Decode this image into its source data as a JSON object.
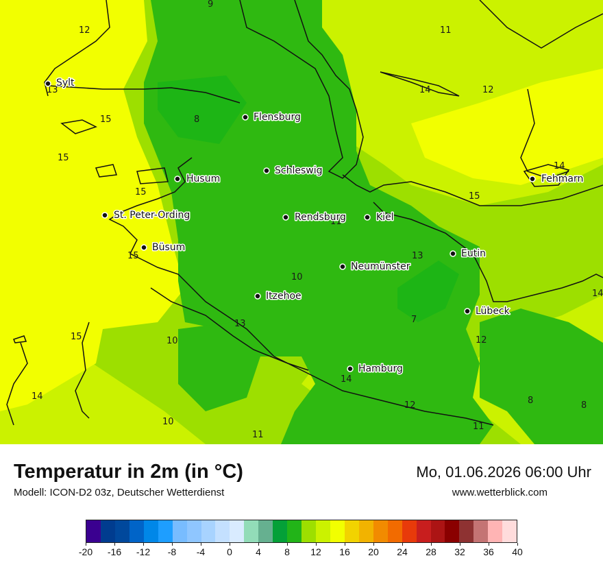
{
  "header": {
    "title": "Temperatur in 2m (in °C)",
    "subtitle": "Modell: ICON-D2 03z, Deutscher Wetterdienst",
    "datetime": "Mo, 01.06.2026 06:00 Uhr",
    "website": "www.wetterblick.com"
  },
  "colors": {
    "t8": "#1db515",
    "t10": "#2fb911",
    "t12": "#9ddf00",
    "t14": "#cbf200",
    "t16": "#f2ff00",
    "coast": "#111111"
  },
  "cities": [
    {
      "name": "Sylt"
    },
    {
      "name": "Flensburg"
    },
    {
      "name": "Schleswig"
    },
    {
      "name": "Husum"
    },
    {
      "name": "Fehmarn"
    },
    {
      "name": "St. Peter-Ording"
    },
    {
      "name": "Rendsburg"
    },
    {
      "name": "Kiel"
    },
    {
      "name": "Büsum"
    },
    {
      "name": "Eutin"
    },
    {
      "name": "Neumünster"
    },
    {
      "name": "Itzehoe"
    },
    {
      "name": "Lübeck"
    },
    {
      "name": "Hamburg"
    }
  ],
  "temperature_labels": [
    {
      "value": "9"
    },
    {
      "value": "12"
    },
    {
      "value": "11"
    },
    {
      "value": "13"
    },
    {
      "value": "14"
    },
    {
      "value": "12"
    },
    {
      "value": "15"
    },
    {
      "value": "8"
    },
    {
      "value": "15"
    },
    {
      "value": "12"
    },
    {
      "value": "14"
    },
    {
      "value": "15"
    },
    {
      "value": "15"
    },
    {
      "value": "11"
    },
    {
      "value": "15"
    },
    {
      "value": "13"
    },
    {
      "value": "10"
    },
    {
      "value": "14"
    },
    {
      "value": "7"
    },
    {
      "value": "13"
    },
    {
      "value": "12"
    },
    {
      "value": "15"
    },
    {
      "value": "10"
    },
    {
      "value": "14"
    },
    {
      "value": "14"
    },
    {
      "value": "12"
    },
    {
      "value": "8"
    },
    {
      "value": "8"
    },
    {
      "value": "10"
    },
    {
      "value": "11"
    },
    {
      "value": "11"
    }
  ],
  "legend": {
    "colors": [
      "#3a0090",
      "#003c8f",
      "#00489c",
      "#0064c8",
      "#0087e8",
      "#1e9eff",
      "#78bcff",
      "#8fc6ff",
      "#a8d3ff",
      "#c4e0ff",
      "#d9ebff",
      "#92dcb8",
      "#66b090",
      "#04a038",
      "#22b418",
      "#9ddf00",
      "#cbf200",
      "#f2ff00",
      "#f2d300",
      "#f2b300",
      "#f28b00",
      "#f26b00",
      "#e83a0a",
      "#c81e1e",
      "#ac1414",
      "#8a0000",
      "#8e3232",
      "#c47474",
      "#ffb4b4",
      "#ffdcdc"
    ],
    "tick_labels": [
      "-20",
      "-16",
      "-12",
      "-8",
      "-4",
      "0",
      "4",
      "8",
      "12",
      "16",
      "20",
      "24",
      "28",
      "32",
      "36",
      "40"
    ]
  }
}
